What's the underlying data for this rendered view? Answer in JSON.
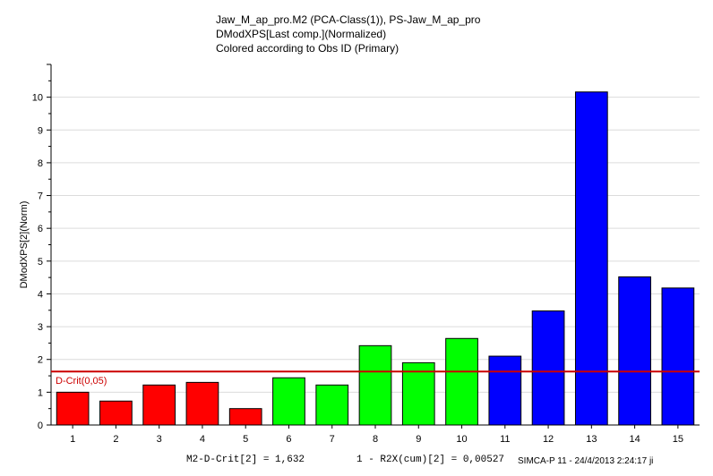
{
  "titles": [
    "Jaw_M_ap_pro.M2 (PCA-Class(1)), PS-Jaw_M_ap_pro",
    "DModXPS[Last comp.](Normalized)",
    "Colored according to Obs ID (Primary)"
  ],
  "chart_data": {
    "type": "bar",
    "title": "Jaw_M_ap_pro.M2 (PCA-Class(1)), PS-Jaw_M_ap_pro",
    "xlabel": "",
    "ylabel": "DModXPS[2](Norm)",
    "categories": [
      "1",
      "2",
      "3",
      "4",
      "5",
      "6",
      "7",
      "8",
      "9",
      "10",
      "11",
      "12",
      "13",
      "14",
      "15"
    ],
    "values": [
      1.0,
      0.73,
      1.22,
      1.3,
      0.5,
      1.44,
      1.22,
      2.42,
      1.9,
      2.64,
      2.1,
      3.48,
      10.16,
      4.52,
      4.18
    ],
    "colors": [
      "#ff0000",
      "#ff0000",
      "#ff0000",
      "#ff0000",
      "#ff0000",
      "#00ff00",
      "#00ff00",
      "#00ff00",
      "#00ff00",
      "#00ff00",
      "#0000ff",
      "#0000ff",
      "#0000ff",
      "#0000ff",
      "#0000ff"
    ],
    "ylim": [
      0,
      11
    ],
    "yticks": [
      0,
      1,
      2,
      3,
      4,
      5,
      6,
      7,
      8,
      9,
      10
    ],
    "grid": true,
    "legend": "none",
    "reference_line": {
      "label": "D-Crit(0,05)",
      "value": 1.632,
      "color": "#cc0000"
    }
  },
  "footer": {
    "dcrit": "M2-D-Crit[2] = 1,632",
    "r2x": "1 - R2X(cum)[2] = 0,00527",
    "software": "SIMCA-P 11 - 24/4/2013 2:24:17 ji"
  }
}
